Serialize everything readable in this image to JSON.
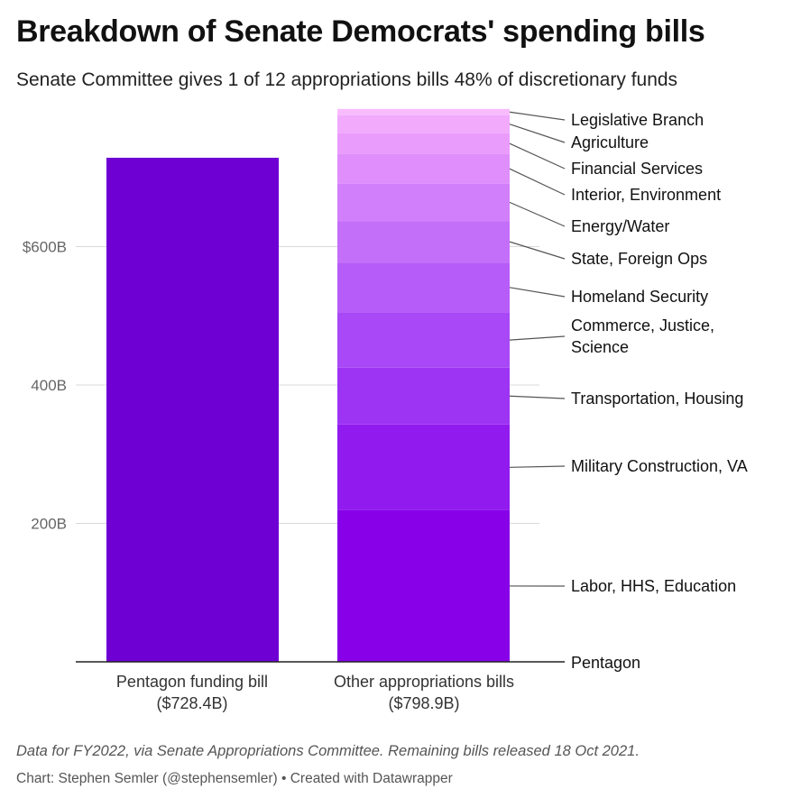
{
  "header": {
    "title": "Breakdown of Senate Democrats' spending bills",
    "subtitle": "Senate Committee gives 1 of 12 appropriations bills 48% of discretionary funds"
  },
  "chart_data": {
    "type": "bar",
    "stacked": true,
    "ylim": [
      0,
      800
    ],
    "y_ticks": [
      {
        "value": 200,
        "label": "200B"
      },
      {
        "value": 400,
        "label": "400B"
      },
      {
        "value": 600,
        "label": "$600B"
      }
    ],
    "grid": true,
    "categories": [
      {
        "label": "Pentagon funding bill",
        "sublabel": "($728.4B)",
        "total": 728.4
      },
      {
        "label": "Other appropriations bills",
        "sublabel": "($798.9B)",
        "total": 798.9
      }
    ],
    "pentagon_bar": {
      "value": 728.4,
      "color": "#6e00d4"
    },
    "segments": [
      {
        "name": "Labor, HHS, Education",
        "value": 219,
        "color": "#8700e8",
        "label_lines": [
          "Labor, HHS, Education"
        ]
      },
      {
        "name": "Military Construction, VA",
        "value": 124,
        "color": "#911bef",
        "label_lines": [
          "Military Construction, VA"
        ]
      },
      {
        "name": "Transportation, Housing",
        "value": 82,
        "color": "#9d33f3",
        "label_lines": [
          "Transportation, Housing"
        ]
      },
      {
        "name": "Commerce, Justice, Science",
        "value": 80,
        "color": "#a948f6",
        "label_lines": [
          "Commerce, Justice,",
          "Science"
        ]
      },
      {
        "name": "Homeland Security",
        "value": 72,
        "color": "#b65cf8",
        "label_lines": [
          "Homeland Security"
        ]
      },
      {
        "name": "State, Foreign Ops",
        "value": 60,
        "color": "#c46ff9",
        "label_lines": [
          "State, Foreign Ops"
        ]
      },
      {
        "name": "Energy/Water",
        "value": 54,
        "color": "#d17ffa",
        "label_lines": [
          "Energy/Water"
        ]
      },
      {
        "name": "Interior, Environment",
        "value": 43,
        "color": "#df8efb",
        "label_lines": [
          "Interior, Environment"
        ]
      },
      {
        "name": "Financial Services",
        "value": 30,
        "color": "#ea9cfc",
        "label_lines": [
          "Financial Services"
        ]
      },
      {
        "name": "Agriculture",
        "value": 26,
        "color": "#f2aafd",
        "label_lines": [
          "Agriculture"
        ]
      },
      {
        "name": "Legislative Branch",
        "value": 6,
        "color": "#f8bcfe",
        "label_lines": [
          "Legislative Branch"
        ]
      }
    ],
    "baseline_label": "Pentagon"
  },
  "footer": {
    "note": "Data for FY2022, via Senate Appropriations Committee. Remaining bills released 18 Oct 2021.",
    "credit": "Chart: Stephen Semler (@stephensemler) • Created with Datawrapper"
  }
}
